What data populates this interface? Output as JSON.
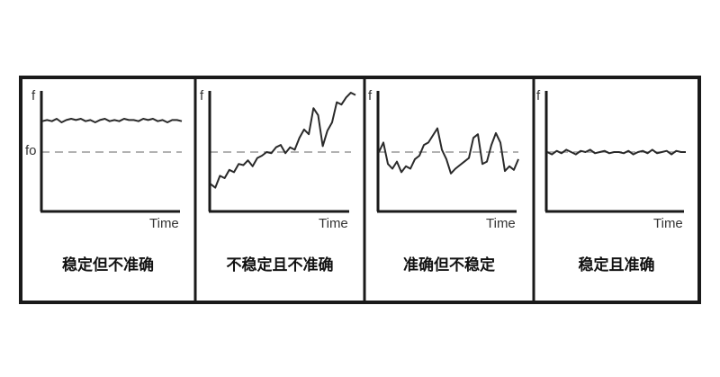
{
  "axis_y_label": "f",
  "reference_label": "fo",
  "axis_x_label": "Time",
  "chart_data": [
    {
      "type": "line",
      "caption": "稳定但不准确",
      "ylim": [
        0,
        10
      ],
      "reference": 5,
      "values": [
        7.6,
        7.7,
        7.6,
        7.8,
        7.5,
        7.7,
        7.8,
        7.7,
        7.8,
        7.6,
        7.7,
        7.5,
        7.7,
        7.8,
        7.6,
        7.7,
        7.6,
        7.8,
        7.7,
        7.7,
        7.6,
        7.8,
        7.7,
        7.8,
        7.6,
        7.7,
        7.5,
        7.7,
        7.7,
        7.6
      ]
    },
    {
      "type": "line",
      "caption": "不稳定且不准确",
      "ylim": [
        0,
        10
      ],
      "reference": 5,
      "values": [
        2.3,
        2.0,
        3.0,
        2.8,
        3.5,
        3.3,
        4.0,
        3.9,
        4.3,
        3.8,
        4.5,
        4.7,
        5.0,
        4.9,
        5.4,
        5.6,
        4.9,
        5.4,
        5.2,
        6.2,
        6.9,
        6.5,
        8.7,
        8.1,
        5.5,
        6.8,
        7.5,
        9.2,
        9.0,
        9.6,
        10.0,
        9.8
      ]
    },
    {
      "type": "line",
      "caption": "准确但不稳定",
      "ylim": [
        0,
        10
      ],
      "reference": 5,
      "values": [
        5.0,
        5.8,
        4.0,
        3.6,
        4.2,
        3.3,
        3.8,
        3.6,
        4.4,
        4.7,
        5.6,
        5.8,
        6.4,
        7.0,
        5.2,
        4.4,
        3.2,
        3.6,
        3.9,
        4.2,
        4.5,
        6.2,
        6.5,
        4.0,
        4.2,
        5.6,
        6.6,
        5.8,
        3.4,
        3.8,
        3.5,
        4.4
      ]
    },
    {
      "type": "line",
      "caption": "稳定且准确",
      "ylim": [
        0,
        10
      ],
      "reference": 5,
      "values": [
        5.0,
        4.8,
        5.1,
        4.9,
        5.2,
        5.0,
        4.8,
        5.1,
        5.0,
        5.2,
        4.9,
        5.0,
        5.1,
        4.9,
        5.0,
        5.0,
        4.9,
        5.1,
        4.8,
        5.0,
        5.1,
        4.9,
        5.2,
        4.9,
        5.0,
        5.1,
        4.8,
        5.1,
        5.0,
        5.0
      ]
    }
  ],
  "colors": {
    "frame": "#1a1a1a",
    "signal": "#2a2a2a",
    "reference": "#999999"
  }
}
